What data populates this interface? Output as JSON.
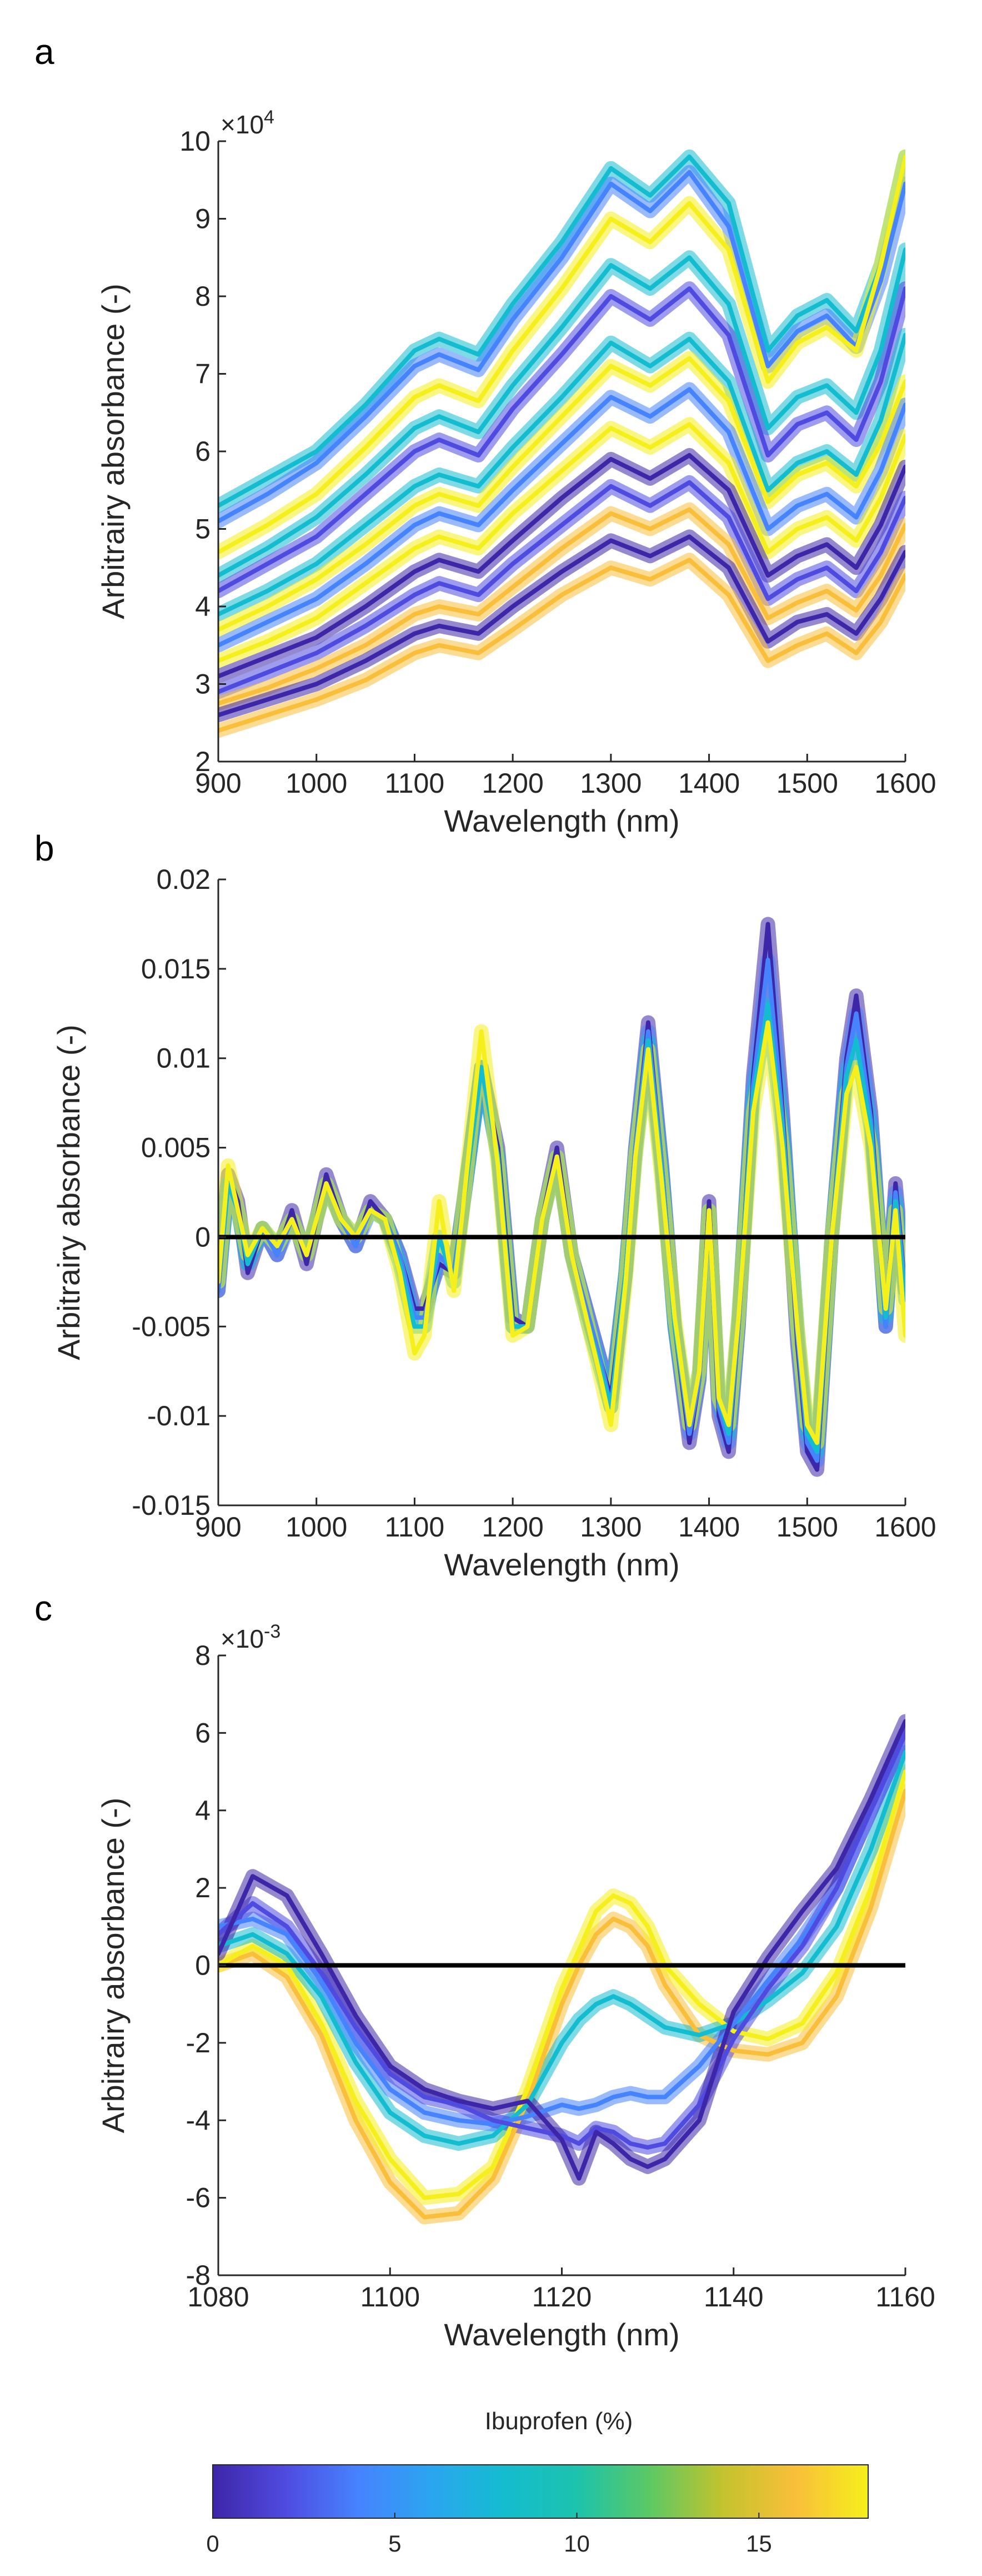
{
  "figure": {
    "colorbar": {
      "title": "Ibuprofen (%)",
      "ticks": [
        "0",
        "5",
        "10",
        "15"
      ],
      "range": [
        0,
        18
      ],
      "colormap": [
        "#3e26a8",
        "#4f4be0",
        "#4683fe",
        "#2ba5f0",
        "#14bcd0",
        "#1cc3ad",
        "#5cc864",
        "#c3c32d",
        "#f9bf3a",
        "#f5ef1b"
      ]
    }
  },
  "chart_data": [
    {
      "panel": "a",
      "type": "line",
      "xlabel": "Wavelength (nm)",
      "ylabel": "Arbitrairy absorbance (-)",
      "exponent_base": "×10",
      "exponent_power": "4",
      "xlim": [
        900,
        1600
      ],
      "ylim": [
        2,
        10
      ],
      "xticks": [
        900,
        1000,
        1100,
        1200,
        1300,
        1400,
        1500,
        1600
      ],
      "yticks": [
        2,
        3,
        4,
        5,
        6,
        7,
        8,
        9,
        10
      ],
      "x": [
        900,
        950,
        1000,
        1050,
        1100,
        1125,
        1165,
        1200,
        1250,
        1300,
        1340,
        1380,
        1420,
        1460,
        1490,
        1520,
        1550,
        1575,
        1600
      ],
      "series": [
        {
          "color": "#14bcd0",
          "values": [
            5.3,
            5.65,
            6.0,
            6.6,
            7.3,
            7.45,
            7.25,
            7.9,
            8.7,
            9.65,
            9.3,
            9.8,
            9.2,
            7.3,
            7.75,
            7.95,
            7.55,
            8.4,
            9.8
          ]
        },
        {
          "color": "#4683fe",
          "values": [
            5.1,
            5.45,
            5.85,
            6.45,
            7.1,
            7.25,
            7.05,
            7.7,
            8.5,
            9.45,
            9.1,
            9.6,
            8.9,
            7.1,
            7.55,
            7.75,
            7.35,
            8.2,
            9.45
          ]
        },
        {
          "color": "#f5ef1b",
          "values": [
            4.7,
            5.05,
            5.45,
            6.05,
            6.7,
            6.85,
            6.65,
            7.3,
            8.1,
            9.0,
            8.7,
            9.2,
            8.6,
            6.9,
            7.4,
            7.6,
            7.3,
            8.4,
            9.8
          ]
        },
        {
          "color": "#14bcd0",
          "values": [
            4.4,
            4.75,
            5.15,
            5.7,
            6.3,
            6.45,
            6.25,
            6.85,
            7.6,
            8.4,
            8.1,
            8.5,
            7.9,
            6.3,
            6.7,
            6.85,
            6.5,
            7.3,
            8.6
          ]
        },
        {
          "color": "#4f4be0",
          "values": [
            4.2,
            4.55,
            4.9,
            5.45,
            6.0,
            6.15,
            5.95,
            6.55,
            7.25,
            8.0,
            7.7,
            8.1,
            7.5,
            5.95,
            6.35,
            6.5,
            6.15,
            6.9,
            8.1
          ]
        },
        {
          "color": "#14bcd0",
          "values": [
            3.9,
            4.2,
            4.55,
            5.05,
            5.55,
            5.7,
            5.55,
            6.05,
            6.7,
            7.4,
            7.1,
            7.45,
            6.9,
            5.5,
            5.85,
            6.0,
            5.7,
            6.4,
            7.5
          ]
        },
        {
          "color": "#f5ef1b",
          "values": [
            3.7,
            4.0,
            4.35,
            4.8,
            5.3,
            5.45,
            5.3,
            5.8,
            6.45,
            7.1,
            6.85,
            7.2,
            6.65,
            5.35,
            5.7,
            5.85,
            5.55,
            6.1,
            6.9
          ]
        },
        {
          "color": "#4683fe",
          "values": [
            3.5,
            3.8,
            4.1,
            4.55,
            5.05,
            5.2,
            5.05,
            5.5,
            6.1,
            6.7,
            6.45,
            6.8,
            6.25,
            5.0,
            5.3,
            5.45,
            5.15,
            5.75,
            6.6
          ]
        },
        {
          "color": "#f5ef1b",
          "values": [
            3.3,
            3.55,
            3.85,
            4.3,
            4.75,
            4.9,
            4.75,
            5.2,
            5.75,
            6.3,
            6.05,
            6.35,
            5.85,
            4.7,
            5.0,
            5.15,
            4.85,
            5.4,
            6.2
          ]
        },
        {
          "color": "#3e26a8",
          "values": [
            3.1,
            3.35,
            3.6,
            4.0,
            4.45,
            4.6,
            4.45,
            4.85,
            5.4,
            5.9,
            5.65,
            5.95,
            5.5,
            4.4,
            4.65,
            4.8,
            4.5,
            5.05,
            5.8
          ]
        },
        {
          "color": "#4f4be0",
          "values": [
            2.9,
            3.15,
            3.4,
            3.75,
            4.15,
            4.3,
            4.15,
            4.55,
            5.05,
            5.55,
            5.3,
            5.6,
            5.15,
            4.1,
            4.35,
            4.5,
            4.2,
            4.7,
            5.4
          ]
        },
        {
          "color": "#f9bf3a",
          "values": [
            2.75,
            2.95,
            3.2,
            3.5,
            3.9,
            4.0,
            3.9,
            4.25,
            4.75,
            5.2,
            5.0,
            5.25,
            4.8,
            3.85,
            4.05,
            4.2,
            3.95,
            4.4,
            5.05
          ]
        },
        {
          "color": "#3e26a8",
          "values": [
            2.6,
            2.8,
            3.0,
            3.3,
            3.65,
            3.75,
            3.65,
            4.0,
            4.45,
            4.85,
            4.65,
            4.9,
            4.5,
            3.55,
            3.8,
            3.9,
            3.65,
            4.1,
            4.7
          ]
        },
        {
          "color": "#f9bf3a",
          "values": [
            2.4,
            2.6,
            2.8,
            3.05,
            3.4,
            3.5,
            3.4,
            3.7,
            4.15,
            4.5,
            4.35,
            4.6,
            4.15,
            3.3,
            3.5,
            3.65,
            3.4,
            3.8,
            4.4
          ]
        }
      ]
    },
    {
      "panel": "b",
      "type": "line",
      "xlabel": "Wavelength (nm)",
      "ylabel": "Arbitrairy absorbance (-)",
      "xlim": [
        900,
        1600
      ],
      "ylim": [
        -0.015,
        0.02
      ],
      "xticks": [
        900,
        1000,
        1100,
        1200,
        1300,
        1400,
        1500,
        1600
      ],
      "yticks": [
        -0.015,
        -0.01,
        -0.005,
        0,
        0.005,
        0.01,
        0.015,
        0.02
      ],
      "ytick_labels": [
        "-0.015",
        "-0.01",
        "-0.005",
        "0",
        "0.005",
        "0.01",
        "0.015",
        "0.02"
      ],
      "zero_line": true,
      "x": [
        900,
        910,
        920,
        930,
        945,
        960,
        975,
        990,
        1010,
        1025,
        1040,
        1055,
        1070,
        1085,
        1100,
        1110,
        1125,
        1140,
        1150,
        1168,
        1185,
        1200,
        1215,
        1230,
        1245,
        1260,
        1275,
        1290,
        1300,
        1315,
        1325,
        1338,
        1352,
        1365,
        1380,
        1390,
        1400,
        1410,
        1420,
        1430,
        1445,
        1460,
        1475,
        1490,
        1500,
        1510,
        1525,
        1540,
        1550,
        1565,
        1580,
        1590,
        1600
      ],
      "series": [
        {
          "color": "#3e26a8",
          "values": [
            -0.003,
            0.0035,
            0.002,
            -0.002,
            0.0005,
            -0.001,
            0.0015,
            -0.0015,
            0.0035,
            0.001,
            -0.0005,
            0.002,
            0.001,
            -0.001,
            -0.004,
            -0.004,
            -0.0015,
            -0.002,
            0.002,
            0.0095,
            0.005,
            -0.0045,
            -0.005,
            0.001,
            0.005,
            -0.001,
            -0.004,
            -0.007,
            -0.009,
            -0.002,
            0.005,
            0.012,
            0.004,
            -0.005,
            -0.0115,
            -0.008,
            0.002,
            -0.01,
            -0.012,
            -0.005,
            0.009,
            0.0175,
            0.007,
            -0.006,
            -0.012,
            -0.013,
            0.0,
            0.01,
            0.0135,
            0.007,
            -0.005,
            0.003,
            -0.003
          ]
        },
        {
          "color": "#4683fe",
          "values": [
            -0.003,
            0.003,
            0.0015,
            -0.0015,
            0.0005,
            -0.001,
            0.001,
            -0.001,
            0.003,
            0.001,
            -0.0005,
            0.0015,
            0.001,
            -0.001,
            -0.0045,
            -0.0045,
            -0.001,
            -0.002,
            0.002,
            0.0095,
            0.0045,
            -0.005,
            -0.005,
            0.001,
            0.0045,
            -0.001,
            -0.004,
            -0.007,
            -0.0095,
            -0.002,
            0.005,
            0.0115,
            0.004,
            -0.005,
            -0.011,
            -0.008,
            0.0015,
            -0.0095,
            -0.0115,
            -0.005,
            0.0085,
            0.0155,
            0.0065,
            -0.0055,
            -0.0115,
            -0.0125,
            0.0,
            0.0095,
            0.0125,
            0.0065,
            -0.005,
            0.0025,
            -0.003
          ]
        },
        {
          "color": "#14bcd0",
          "values": [
            -0.0025,
            0.003,
            0.0015,
            -0.0015,
            0.0005,
            -0.0005,
            0.001,
            -0.001,
            0.003,
            0.001,
            0.0,
            0.0015,
            0.001,
            -0.0015,
            -0.005,
            -0.005,
            0.0,
            -0.0025,
            0.002,
            0.0095,
            0.0045,
            -0.005,
            -0.005,
            0.001,
            0.0045,
            -0.001,
            -0.0045,
            -0.0075,
            -0.0095,
            -0.002,
            0.0045,
            0.011,
            0.0035,
            -0.005,
            -0.0105,
            -0.0075,
            0.0015,
            -0.009,
            -0.011,
            -0.0045,
            0.008,
            0.013,
            0.006,
            -0.005,
            -0.011,
            -0.012,
            0.0,
            0.009,
            0.011,
            0.006,
            -0.0045,
            0.002,
            -0.0035
          ]
        },
        {
          "color": "#f5ef1b",
          "values": [
            -0.0025,
            0.004,
            0.0015,
            -0.001,
            0.0005,
            -0.0005,
            0.001,
            -0.001,
            0.003,
            0.001,
            0.0,
            0.0015,
            0.001,
            -0.002,
            -0.0065,
            -0.0055,
            0.002,
            -0.003,
            0.002,
            0.0115,
            0.004,
            -0.0055,
            -0.005,
            0.001,
            0.0045,
            -0.001,
            -0.0045,
            -0.008,
            -0.0105,
            -0.0025,
            0.0045,
            0.0105,
            0.003,
            -0.0045,
            -0.0105,
            -0.0075,
            0.0015,
            -0.009,
            -0.0105,
            -0.0045,
            0.007,
            0.012,
            0.005,
            -0.005,
            -0.0105,
            -0.0115,
            0.0,
            0.008,
            0.0095,
            0.005,
            -0.004,
            0.0015,
            -0.0055
          ]
        }
      ]
    },
    {
      "panel": "c",
      "type": "line",
      "xlabel": "Wavelength (nm)",
      "ylabel": "Arbitrairy absorbance (-)",
      "exponent_base": "×10",
      "exponent_power": "-3",
      "xlim": [
        1080,
        1160
      ],
      "ylim": [
        -8,
        8
      ],
      "xticks": [
        1080,
        1100,
        1120,
        1140,
        1160
      ],
      "yticks": [
        -8,
        -6,
        -4,
        -2,
        0,
        2,
        4,
        6,
        8
      ],
      "zero_line": true,
      "x": [
        1080,
        1084,
        1088,
        1092,
        1096,
        1100,
        1104,
        1108,
        1112,
        1116,
        1120,
        1122,
        1124,
        1126,
        1128,
        1130,
        1132,
        1136,
        1140,
        1144,
        1148,
        1152,
        1156,
        1160
      ],
      "series": [
        {
          "color": "#f9bf3a",
          "values": [
            0.0,
            0.3,
            -0.3,
            -1.8,
            -4.0,
            -5.6,
            -6.5,
            -6.4,
            -5.5,
            -3.5,
            -1.0,
            0.0,
            0.8,
            1.2,
            1.0,
            0.5,
            -0.5,
            -1.8,
            -2.2,
            -2.3,
            -2.0,
            -0.8,
            1.5,
            4.5
          ]
        },
        {
          "color": "#f5ef1b",
          "values": [
            0.0,
            0.5,
            0.0,
            -1.5,
            -3.5,
            -5.0,
            -6.0,
            -5.9,
            -5.2,
            -3.2,
            -0.6,
            0.4,
            1.4,
            1.8,
            1.6,
            1.0,
            0.0,
            -1.0,
            -1.7,
            -1.9,
            -1.5,
            -0.2,
            2.0,
            5.0
          ]
        },
        {
          "color": "#14bcd0",
          "values": [
            0.5,
            0.8,
            0.3,
            -0.8,
            -2.5,
            -3.8,
            -4.4,
            -4.6,
            -4.4,
            -3.6,
            -2.0,
            -1.4,
            -1.0,
            -0.8,
            -1.0,
            -1.3,
            -1.6,
            -1.8,
            -1.5,
            -0.9,
            -0.2,
            1.0,
            3.0,
            5.5
          ]
        },
        {
          "color": "#4683fe",
          "values": [
            1.0,
            1.2,
            0.8,
            -0.4,
            -2.0,
            -3.2,
            -3.8,
            -4.0,
            -4.1,
            -3.9,
            -3.6,
            -3.7,
            -3.6,
            -3.4,
            -3.3,
            -3.4,
            -3.4,
            -2.6,
            -1.5,
            -0.4,
            0.7,
            2.0,
            4.0,
            6.0
          ]
        },
        {
          "color": "#4f4be0",
          "values": [
            0.8,
            1.6,
            1.0,
            -0.2,
            -1.6,
            -2.8,
            -3.4,
            -3.6,
            -4.0,
            -4.2,
            -4.4,
            -4.6,
            -4.2,
            -4.3,
            -4.6,
            -4.7,
            -4.6,
            -3.6,
            -1.9,
            -0.6,
            0.5,
            2.0,
            4.0,
            6.0
          ]
        },
        {
          "color": "#3e26a8",
          "values": [
            0.3,
            2.3,
            1.8,
            0.3,
            -1.3,
            -2.6,
            -3.2,
            -3.5,
            -3.7,
            -3.5,
            -4.5,
            -5.5,
            -4.3,
            -4.6,
            -5.0,
            -5.2,
            -5.0,
            -4.0,
            -1.2,
            0.2,
            1.4,
            2.5,
            4.3,
            6.3
          ]
        }
      ]
    }
  ]
}
